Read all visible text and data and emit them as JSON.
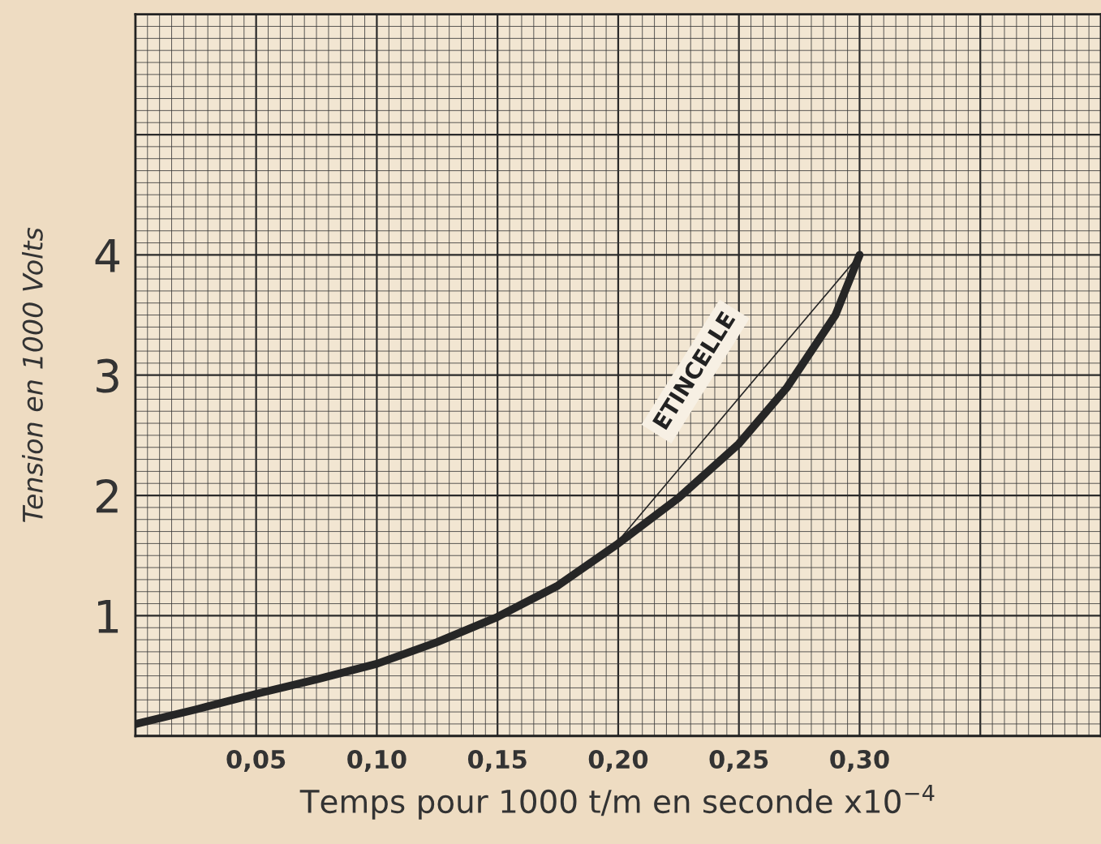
{
  "chart_data": {
    "type": "line",
    "xlabel": "Temps pour 1000 t/m en seconde x10$^{−4}$",
    "ylabel": "Tension en 1000 Volts",
    "series": [
      {
        "color": "#262626",
        "x": [
          0.0,
          0.025,
          0.05,
          0.075,
          0.1,
          0.125,
          0.15,
          0.175,
          0.2,
          0.225,
          0.25,
          0.27,
          0.29,
          0.3
        ],
        "values": [
          0.1,
          0.22,
          0.35,
          0.47,
          0.6,
          0.78,
          0.99,
          1.25,
          1.6,
          1.98,
          2.43,
          2.9,
          3.5,
          4.0
        ]
      },
      {
        "color": "#262626",
        "x": [
          0.197,
          0.3
        ],
        "values": [
          1.55,
          4.0
        ]
      }
    ],
    "annotations": [
      "ETINCELLE"
    ],
    "xlim": [
      0,
      0.4
    ],
    "ylim": [
      0,
      6
    ],
    "xticks": [
      {
        "value": 0,
        "label": null
      },
      {
        "value": 0.05,
        "label": "0,05"
      },
      {
        "value": 0.1,
        "label": "0,10"
      },
      {
        "value": 0.15,
        "label": "0,15"
      },
      {
        "value": 0.2,
        "label": "0,20"
      },
      {
        "value": 0.25,
        "label": "0,25"
      },
      {
        "value": 0.3,
        "label": "0,30"
      },
      {
        "value": 0.35,
        "label": null
      },
      {
        "value": 0.4,
        "label": null
      }
    ],
    "yticks": [
      {
        "value": 0,
        "label": null
      },
      1,
      2,
      3,
      4,
      {
        "value": 5,
        "label": null
      },
      {
        "value": 6,
        "label": null
      }
    ],
    "grid": true
  }
}
